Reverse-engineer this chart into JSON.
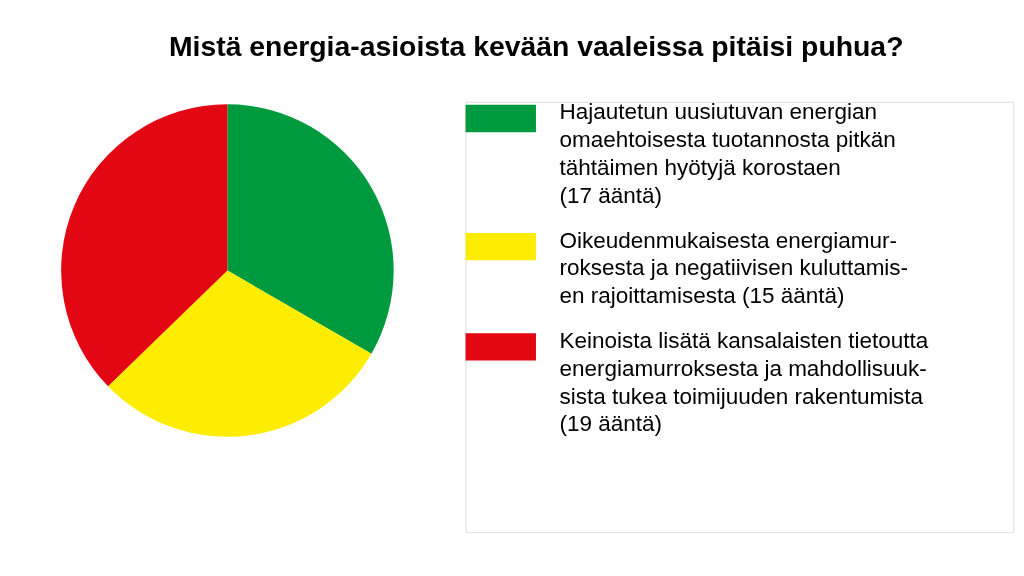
{
  "chart_data": {
    "type": "pie",
    "title": "Mistä energia-asioista kevään vaaleissa pitäisi puhua?",
    "categories": [
      "Hajautetun uusiutuvan energian\nomaehtoisesta tuotannosta pitkän\ntähtäimen hyötyjä korostaen\n(17 ääntä)",
      "Oikeudenmukaisesta energiamur-\nroksesta ja negatiivisen kuluttamis-\nen rajoittamisesta (15 ääntä)",
      "Keinoista lisätä kansalaisten tietoutta\nenergiamurroksesta ja mahdollisuuk-\nsista tukea toimijuuden rakentumista\n(19 ääntä)"
    ],
    "values": [
      17,
      15,
      19
    ],
    "colors": [
      "#009a3e",
      "#ffed00",
      "#e30613"
    ],
    "legend": "right"
  }
}
